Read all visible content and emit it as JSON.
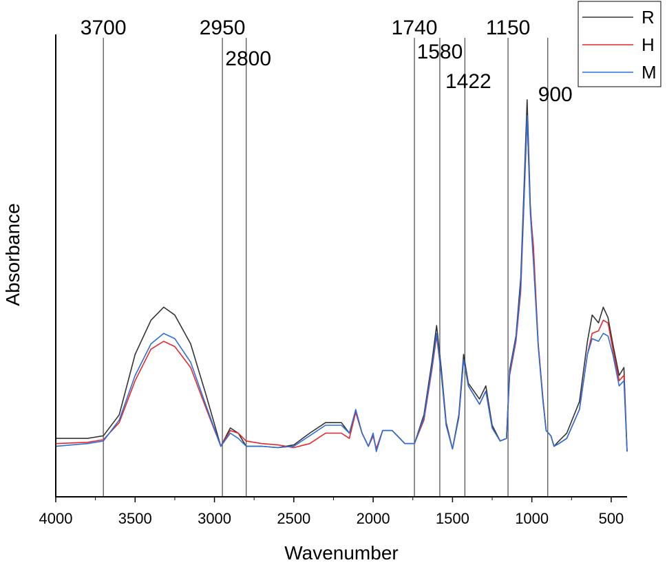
{
  "chart_data": {
    "type": "line",
    "xlabel": "Wavenumber",
    "ylabel": "Absorbance",
    "xlim": [
      4000,
      400
    ],
    "x_reversed": true,
    "xticks": [
      4000,
      3500,
      3000,
      2500,
      2000,
      1500,
      1000,
      500
    ],
    "y_ticks_shown": false,
    "grid": false,
    "legend_position": "top-right",
    "reference_lines": [
      3700,
      2950,
      2800,
      1740,
      1580,
      1422,
      1150,
      900
    ],
    "peak_labels": [
      "3700",
      "2950",
      "2800",
      "1740",
      "1580",
      "1422",
      "1150",
      "900"
    ],
    "series": [
      {
        "name": "R",
        "color": "#333333",
        "points": [
          [
            4000,
            0.06
          ],
          [
            3800,
            0.06
          ],
          [
            3700,
            0.07
          ],
          [
            3600,
            0.15
          ],
          [
            3500,
            0.38
          ],
          [
            3400,
            0.51
          ],
          [
            3320,
            0.56
          ],
          [
            3250,
            0.53
          ],
          [
            3150,
            0.42
          ],
          [
            3050,
            0.22
          ],
          [
            2960,
            0.03
          ],
          [
            2900,
            0.1
          ],
          [
            2850,
            0.08
          ],
          [
            2800,
            0.03
          ],
          [
            2700,
            0.03
          ],
          [
            2600,
            0.025
          ],
          [
            2500,
            0.035
          ],
          [
            2400,
            0.08
          ],
          [
            2300,
            0.12
          ],
          [
            2200,
            0.12
          ],
          [
            2150,
            0.08
          ],
          [
            2110,
            0.16
          ],
          [
            2070,
            0.08
          ],
          [
            2030,
            0.03
          ],
          [
            2000,
            0.07
          ],
          [
            1980,
            0.02
          ],
          [
            1940,
            0.09
          ],
          [
            1880,
            0.09
          ],
          [
            1800,
            0.04
          ],
          [
            1740,
            0.04
          ],
          [
            1680,
            0.15
          ],
          [
            1630,
            0.35
          ],
          [
            1600,
            0.49
          ],
          [
            1570,
            0.32
          ],
          [
            1540,
            0.12
          ],
          [
            1500,
            0.02
          ],
          [
            1460,
            0.15
          ],
          [
            1430,
            0.38
          ],
          [
            1400,
            0.27
          ],
          [
            1330,
            0.21
          ],
          [
            1290,
            0.26
          ],
          [
            1250,
            0.11
          ],
          [
            1200,
            0.05
          ],
          [
            1160,
            0.06
          ],
          [
            1140,
            0.32
          ],
          [
            1100,
            0.45
          ],
          [
            1070,
            0.67
          ],
          [
            1050,
            1.0
          ],
          [
            1030,
            1.35
          ],
          [
            1010,
            0.95
          ],
          [
            990,
            0.75
          ],
          [
            960,
            0.42
          ],
          [
            930,
            0.21
          ],
          [
            910,
            0.09
          ],
          [
            880,
            0.07
          ],
          [
            860,
            0.03
          ],
          [
            830,
            0.05
          ],
          [
            780,
            0.08
          ],
          [
            700,
            0.2
          ],
          [
            650,
            0.43
          ],
          [
            620,
            0.53
          ],
          [
            580,
            0.5
          ],
          [
            550,
            0.56
          ],
          [
            520,
            0.52
          ],
          [
            490,
            0.42
          ],
          [
            450,
            0.3
          ],
          [
            420,
            0.33
          ],
          [
            400,
            0.01
          ]
        ]
      },
      {
        "name": "H",
        "color": "#e8262b",
        "points": [
          [
            4000,
            0.04
          ],
          [
            3800,
            0.045
          ],
          [
            3700,
            0.055
          ],
          [
            3600,
            0.12
          ],
          [
            3500,
            0.28
          ],
          [
            3400,
            0.4
          ],
          [
            3320,
            0.43
          ],
          [
            3250,
            0.41
          ],
          [
            3150,
            0.33
          ],
          [
            3050,
            0.17
          ],
          [
            2960,
            0.03
          ],
          [
            2900,
            0.09
          ],
          [
            2850,
            0.08
          ],
          [
            2800,
            0.05
          ],
          [
            2700,
            0.04
          ],
          [
            2600,
            0.035
          ],
          [
            2500,
            0.025
          ],
          [
            2400,
            0.04
          ],
          [
            2300,
            0.08
          ],
          [
            2200,
            0.08
          ],
          [
            2150,
            0.06
          ],
          [
            2110,
            0.16
          ],
          [
            2070,
            0.08
          ],
          [
            2030,
            0.03
          ],
          [
            2000,
            0.07
          ],
          [
            1980,
            0.02
          ],
          [
            1940,
            0.09
          ],
          [
            1880,
            0.09
          ],
          [
            1800,
            0.04
          ],
          [
            1740,
            0.04
          ],
          [
            1680,
            0.13
          ],
          [
            1630,
            0.32
          ],
          [
            1600,
            0.45
          ],
          [
            1570,
            0.3
          ],
          [
            1540,
            0.11
          ],
          [
            1500,
            0.02
          ],
          [
            1460,
            0.14
          ],
          [
            1430,
            0.36
          ],
          [
            1400,
            0.26
          ],
          [
            1330,
            0.19
          ],
          [
            1290,
            0.24
          ],
          [
            1250,
            0.1
          ],
          [
            1200,
            0.05
          ],
          [
            1160,
            0.06
          ],
          [
            1140,
            0.3
          ],
          [
            1100,
            0.43
          ],
          [
            1070,
            0.62
          ],
          [
            1050,
            0.95
          ],
          [
            1030,
            1.28
          ],
          [
            1010,
            0.93
          ],
          [
            990,
            0.79
          ],
          [
            960,
            0.42
          ],
          [
            930,
            0.21
          ],
          [
            910,
            0.09
          ],
          [
            880,
            0.07
          ],
          [
            860,
            0.03
          ],
          [
            830,
            0.04
          ],
          [
            780,
            0.06
          ],
          [
            700,
            0.17
          ],
          [
            650,
            0.38
          ],
          [
            620,
            0.46
          ],
          [
            580,
            0.47
          ],
          [
            550,
            0.51
          ],
          [
            520,
            0.5
          ],
          [
            490,
            0.4
          ],
          [
            450,
            0.28
          ],
          [
            420,
            0.3
          ],
          [
            400,
            0.01
          ]
        ]
      },
      {
        "name": "M",
        "color": "#2a6fdb",
        "points": [
          [
            4000,
            0.03
          ],
          [
            3800,
            0.04
          ],
          [
            3700,
            0.05
          ],
          [
            3600,
            0.13
          ],
          [
            3500,
            0.3
          ],
          [
            3400,
            0.42
          ],
          [
            3320,
            0.46
          ],
          [
            3250,
            0.44
          ],
          [
            3150,
            0.35
          ],
          [
            3050,
            0.18
          ],
          [
            2960,
            0.03
          ],
          [
            2900,
            0.08
          ],
          [
            2850,
            0.06
          ],
          [
            2800,
            0.03
          ],
          [
            2700,
            0.03
          ],
          [
            2600,
            0.025
          ],
          [
            2500,
            0.03
          ],
          [
            2400,
            0.07
          ],
          [
            2300,
            0.11
          ],
          [
            2200,
            0.11
          ],
          [
            2150,
            0.08
          ],
          [
            2110,
            0.17
          ],
          [
            2070,
            0.08
          ],
          [
            2030,
            0.03
          ],
          [
            2000,
            0.08
          ],
          [
            1980,
            0.01
          ],
          [
            1940,
            0.09
          ],
          [
            1880,
            0.09
          ],
          [
            1800,
            0.04
          ],
          [
            1740,
            0.04
          ],
          [
            1680,
            0.14
          ],
          [
            1630,
            0.33
          ],
          [
            1600,
            0.46
          ],
          [
            1570,
            0.3
          ],
          [
            1540,
            0.11
          ],
          [
            1500,
            0.02
          ],
          [
            1460,
            0.14
          ],
          [
            1430,
            0.36
          ],
          [
            1400,
            0.26
          ],
          [
            1330,
            0.19
          ],
          [
            1290,
            0.24
          ],
          [
            1250,
            0.1
          ],
          [
            1200,
            0.05
          ],
          [
            1160,
            0.06
          ],
          [
            1140,
            0.31
          ],
          [
            1100,
            0.44
          ],
          [
            1070,
            0.64
          ],
          [
            1050,
            0.96
          ],
          [
            1030,
            1.29
          ],
          [
            1010,
            0.92
          ],
          [
            990,
            0.73
          ],
          [
            960,
            0.41
          ],
          [
            930,
            0.2
          ],
          [
            910,
            0.09
          ],
          [
            880,
            0.07
          ],
          [
            860,
            0.03
          ],
          [
            830,
            0.04
          ],
          [
            780,
            0.06
          ],
          [
            700,
            0.17
          ],
          [
            650,
            0.38
          ],
          [
            620,
            0.44
          ],
          [
            580,
            0.43
          ],
          [
            550,
            0.46
          ],
          [
            520,
            0.45
          ],
          [
            490,
            0.38
          ],
          [
            450,
            0.26
          ],
          [
            420,
            0.28
          ],
          [
            400,
            0.01
          ]
        ]
      }
    ]
  }
}
